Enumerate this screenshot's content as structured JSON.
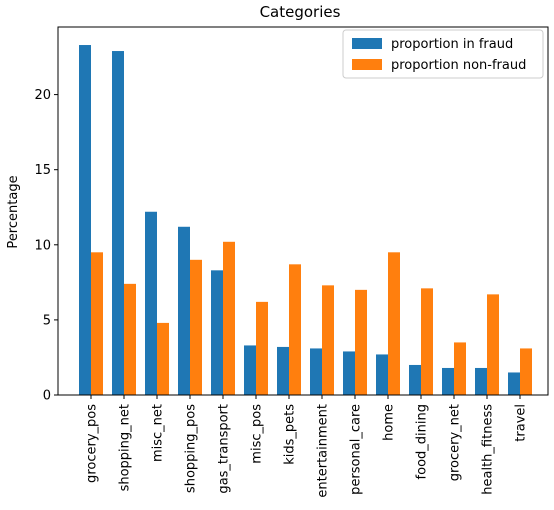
{
  "chart_data": {
    "type": "bar",
    "title": "Categories",
    "xlabel": "",
    "ylabel": "Percentage",
    "ylim": [
      0,
      24.5
    ],
    "yticks": [
      0,
      5,
      10,
      15,
      20
    ],
    "grid": false,
    "legend_position": "top-right",
    "categories": [
      "grocery_pos",
      "shopping_net",
      "misc_net",
      "shopping_pos",
      "gas_transport",
      "misc_pos",
      "kids_pets",
      "entertainment",
      "personal_care",
      "home",
      "food_dining",
      "grocery_net",
      "health_fitness",
      "travel"
    ],
    "series": [
      {
        "name": "proportion in fraud",
        "color": "#1f77b4",
        "values": [
          23.3,
          22.9,
          12.2,
          11.2,
          8.3,
          3.3,
          3.2,
          3.1,
          2.9,
          2.7,
          2.0,
          1.8,
          1.8,
          1.5
        ]
      },
      {
        "name": "proportion non-fraud",
        "color": "#ff7f0e",
        "values": [
          9.5,
          7.4,
          4.8,
          9.0,
          10.2,
          6.2,
          8.7,
          7.3,
          7.0,
          9.5,
          7.1,
          3.5,
          6.7,
          3.1
        ]
      }
    ]
  }
}
